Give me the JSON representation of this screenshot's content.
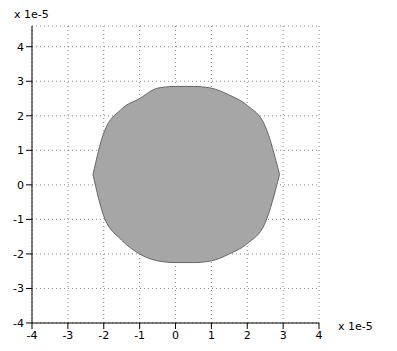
{
  "chart_data": {
    "type": "area",
    "x_scale_label": "x 1e-5",
    "y_scale_label": "x 1e-5",
    "x": [
      -2.3,
      -2.0,
      -1.5,
      -1.0,
      -0.5,
      0,
      0.5,
      1.0,
      1.5,
      2.0,
      2.5,
      2.9
    ],
    "upper": [
      0.3,
      1.5,
      2.2,
      2.5,
      2.8,
      2.85,
      2.85,
      2.8,
      2.6,
      2.3,
      1.7,
      0.3
    ],
    "lower": [
      0.3,
      -0.9,
      -1.6,
      -2.0,
      -2.2,
      -2.25,
      -2.25,
      -2.2,
      -2.0,
      -1.7,
      -1.1,
      0.3
    ],
    "color": "#a6a6a6",
    "xlim": [
      -4,
      4
    ],
    "ylim": [
      -4,
      4.6
    ],
    "xticks": [
      -4,
      -3,
      -2,
      -1,
      0,
      1,
      2,
      3,
      4
    ],
    "yticks": [
      -4,
      -3,
      -2,
      -1,
      0,
      1,
      2,
      3,
      4
    ],
    "grid": true
  }
}
